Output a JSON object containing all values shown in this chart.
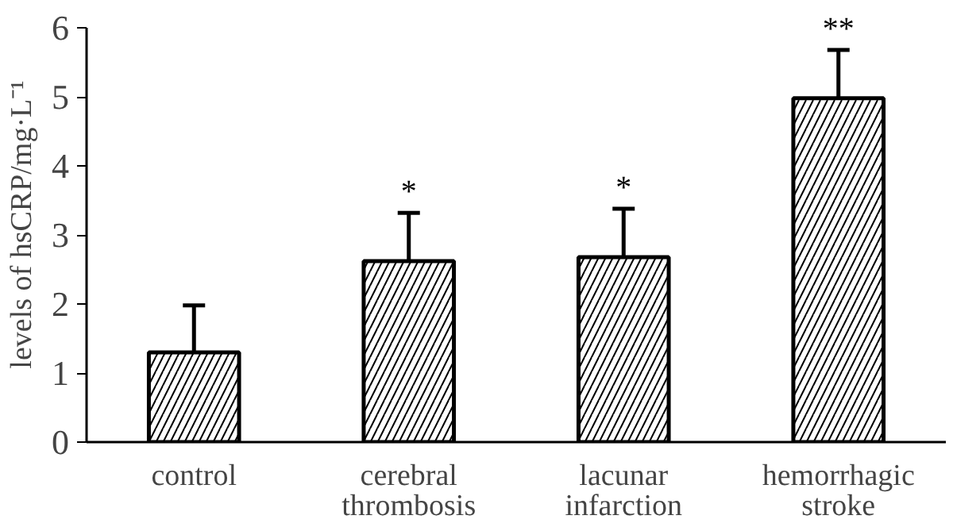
{
  "chart_data": {
    "type": "bar",
    "ylabel": "levels of hsCRP/mg·L⁻¹",
    "categories": [
      "control",
      "cerebral\nthrombosis",
      "lacunar\ninfarction",
      "hemorrhagic\nstroke"
    ],
    "values": [
      1.3,
      2.62,
      2.68,
      4.98
    ],
    "errors": [
      0.68,
      0.7,
      0.7,
      0.7
    ],
    "color": "#ffffff",
    "ylim": [
      0,
      6
    ],
    "yticks": [
      0,
      1,
      2,
      3,
      4,
      5,
      6
    ],
    "grid": false,
    "annotations": [
      {
        "text": "*",
        "x": "cerebral\nthrombosis",
        "y": 3.32
      },
      {
        "text": "*",
        "x": "lacunar\ninfarction",
        "y": 3.38
      },
      {
        "text": "**",
        "x": "hemorrhagic\nstroke",
        "y": 5.68
      }
    ]
  }
}
